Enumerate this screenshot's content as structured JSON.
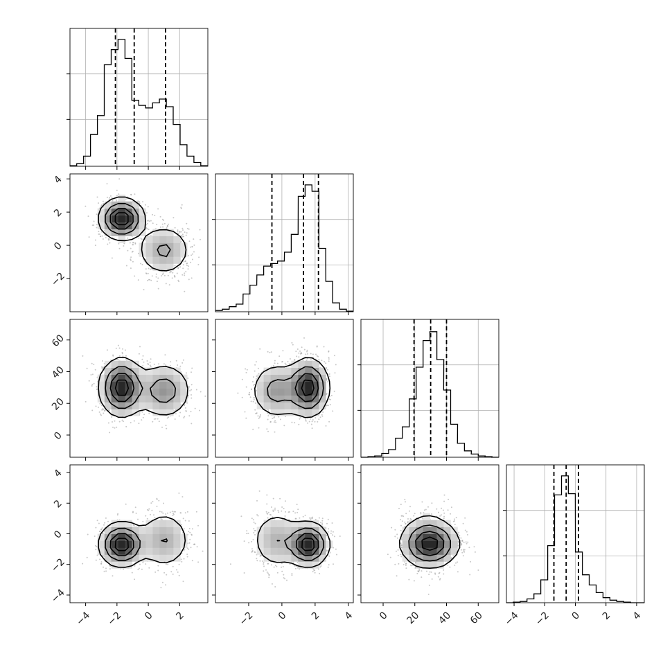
{
  "chart_data": {
    "type": "corner",
    "n_params": 4,
    "title": "",
    "param_labels": [],
    "axes": [
      {
        "range": [
          -5.0,
          3.8
        ],
        "ticks": [
          -4,
          -2,
          0,
          2
        ]
      },
      {
        "range": [
          -4.0,
          4.3
        ],
        "ticks": [
          -2,
          0,
          2,
          4
        ]
      },
      {
        "range": [
          -14,
          73
        ],
        "ticks": [
          0,
          20,
          40,
          60
        ]
      },
      {
        "range": [
          -4.5,
          4.5
        ],
        "ticks": [
          -4,
          -2,
          0,
          2,
          4
        ]
      }
    ],
    "quantiles": [
      [
        -2.1,
        -0.9,
        1.1
      ],
      [
        -0.6,
        1.3,
        2.2
      ],
      [
        19.5,
        30.0,
        40.0
      ],
      [
        -1.4,
        -0.6,
        0.2
      ]
    ],
    "histograms": [
      {
        "bin_centers": [
          -4.79,
          -4.35,
          -3.91,
          -3.47,
          -3.03,
          -2.59,
          -2.15,
          -1.71,
          -1.27,
          -0.83,
          -0.39,
          0.05,
          0.49,
          0.93,
          1.37,
          1.81,
          2.25,
          2.69,
          3.13,
          3.57
        ],
        "counts": [
          0.005,
          0.02,
          0.08,
          0.25,
          0.4,
          0.8,
          0.92,
          1.0,
          0.85,
          0.52,
          0.48,
          0.46,
          0.5,
          0.53,
          0.47,
          0.33,
          0.17,
          0.08,
          0.03,
          0.005
        ]
      },
      {
        "bin_centers": [
          -3.79,
          -3.38,
          -2.96,
          -2.55,
          -2.13,
          -1.72,
          -1.3,
          -0.89,
          -0.47,
          -0.06,
          0.36,
          0.77,
          1.19,
          1.6,
          2.02,
          2.43,
          2.85,
          3.26,
          3.68,
          4.09
        ],
        "counts": [
          0.01,
          0.02,
          0.04,
          0.06,
          0.14,
          0.21,
          0.29,
          0.36,
          0.38,
          0.4,
          0.47,
          0.61,
          0.91,
          1.0,
          0.95,
          0.5,
          0.24,
          0.07,
          0.02,
          0.005
        ]
      },
      {
        "bin_centers": [
          -11.8,
          -7.4,
          -3.1,
          1.3,
          5.6,
          10.0,
          14.3,
          18.7,
          23.0,
          27.4,
          31.7,
          36.1,
          40.4,
          44.8,
          49.1,
          53.5,
          57.8,
          62.2,
          66.5,
          70.8
        ],
        "counts": [
          0.0,
          0.005,
          0.01,
          0.03,
          0.06,
          0.15,
          0.24,
          0.46,
          0.71,
          0.92,
          0.99,
          0.77,
          0.53,
          0.26,
          0.11,
          0.05,
          0.025,
          0.01,
          0.005,
          0.0
        ]
      },
      {
        "bin_centers": [
          -4.28,
          -3.83,
          -3.38,
          -2.93,
          -2.48,
          -2.03,
          -1.58,
          -1.13,
          -0.68,
          -0.23,
          0.23,
          0.68,
          1.13,
          1.58,
          2.03,
          2.48,
          2.93,
          3.38,
          3.83,
          4.28
        ],
        "counts": [
          0.0,
          0.005,
          0.01,
          0.03,
          0.07,
          0.18,
          0.45,
          0.85,
          1.0,
          0.86,
          0.4,
          0.22,
          0.14,
          0.08,
          0.04,
          0.02,
          0.01,
          0.005,
          0.0,
          0.0
        ]
      }
    ],
    "mixture": {
      "weights": [
        0.62,
        0.38
      ],
      "means": [
        [
          -1.7,
          1.6,
          30.0,
          -0.7
        ],
        [
          1.0,
          -0.3,
          28.0,
          -0.4
        ]
      ],
      "sigmas": [
        [
          0.7,
          0.6,
          9.0,
          0.7
        ],
        [
          0.9,
          0.8,
          9.0,
          1.0
        ]
      ]
    },
    "grid": true,
    "colors": {
      "line": "#000000",
      "grid": "#b0b0b0",
      "points": "#9a9a9a"
    }
  }
}
